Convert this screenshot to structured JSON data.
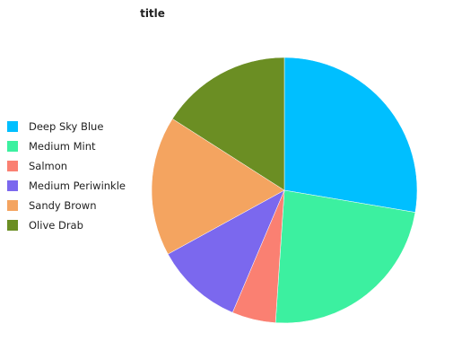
{
  "chart_data": {
    "type": "pie",
    "title": "title",
    "categories": [
      "Deep Sky Blue",
      "Medium Mint",
      "Salmon",
      "Medium Periwinkle",
      "Sandy Brown",
      "Olive Drab"
    ],
    "values": [
      26,
      22,
      5,
      10,
      16,
      15
    ],
    "colors": [
      "#00bfff",
      "#3cf0a0",
      "#fa8072",
      "#7b68ee",
      "#f4a460",
      "#6b8e23"
    ],
    "legend_position": "left",
    "start_angle_deg": 90,
    "direction": "clockwise"
  }
}
